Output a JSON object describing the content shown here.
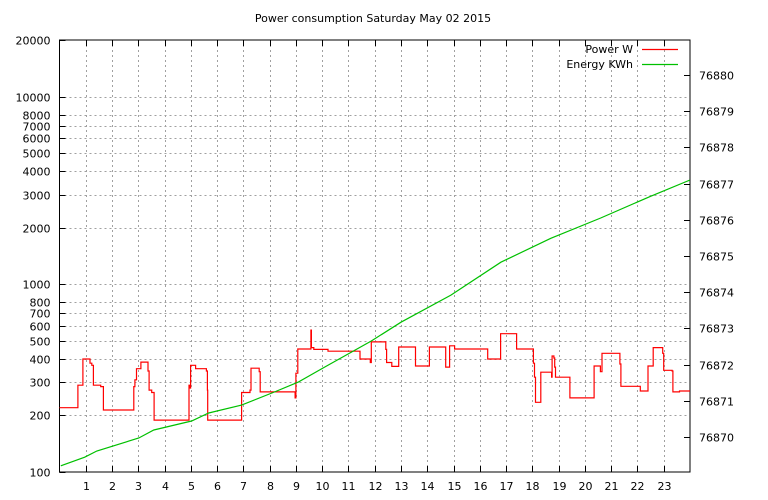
{
  "chart_data": {
    "type": "line",
    "title": "Power consumption Saturday May 02 2015",
    "xlabel": "",
    "ylabel": "",
    "xlim": [
      0,
      24
    ],
    "ylim": [
      100,
      20000
    ],
    "yscale": "log",
    "y2lim": [
      76869.03,
      76880.97
    ],
    "grid": true,
    "legend_position": "top-right",
    "x_ticks": [
      1,
      2,
      3,
      4,
      5,
      6,
      7,
      8,
      9,
      10,
      11,
      12,
      13,
      14,
      15,
      16,
      17,
      18,
      19,
      20,
      21,
      22,
      23
    ],
    "y_ticks": [
      100,
      200,
      300,
      400,
      500,
      600,
      700,
      800,
      1000,
      2000,
      3000,
      4000,
      5000,
      6000,
      7000,
      8000,
      10000,
      20000
    ],
    "y2_ticks": [
      76870,
      76871,
      76872,
      76873,
      76874,
      76875,
      76876,
      76877,
      76878,
      76879,
      76880
    ],
    "series": [
      {
        "name": "Power W",
        "color": "#ff0000",
        "axis": "left",
        "style": "steps",
        "points": [
          [
            0,
            220
          ],
          [
            0.7,
            290
          ],
          [
            0.89,
            400
          ],
          [
            1.16,
            380
          ],
          [
            1.23,
            370
          ],
          [
            1.29,
            290
          ],
          [
            1.57,
            285
          ],
          [
            1.67,
            214
          ],
          [
            2.83,
            285
          ],
          [
            2.87,
            310
          ],
          [
            2.93,
            355
          ],
          [
            3.1,
            385
          ],
          [
            3.37,
            345
          ],
          [
            3.41,
            273
          ],
          [
            3.51,
            265
          ],
          [
            3.6,
            189
          ],
          [
            4.93,
            290
          ],
          [
            4.97,
            280
          ],
          [
            4.99,
            370
          ],
          [
            5.18,
            355
          ],
          [
            5.59,
            345
          ],
          [
            5.63,
            273
          ],
          [
            5.64,
            189
          ],
          [
            6.93,
            265
          ],
          [
            7.25,
            273
          ],
          [
            7.29,
            357
          ],
          [
            7.6,
            342
          ],
          [
            7.64,
            267
          ],
          [
            8.97,
            248
          ],
          [
            9.0,
            336
          ],
          [
            9.07,
            452
          ],
          [
            9.57,
            570
          ],
          [
            9.59,
            460
          ],
          [
            9.68,
            450
          ],
          [
            10.22,
            440
          ],
          [
            11.44,
            400
          ],
          [
            11.83,
            383
          ],
          [
            11.87,
            493
          ],
          [
            12.42,
            450
          ],
          [
            12.45,
            383
          ],
          [
            12.65,
            365
          ],
          [
            12.91,
            463
          ],
          [
            13.55,
            367
          ],
          [
            14.08,
            463
          ],
          [
            14.7,
            362
          ],
          [
            14.85,
            470
          ],
          [
            15.04,
            452
          ],
          [
            16.3,
            400
          ],
          [
            16.79,
            545
          ],
          [
            17.4,
            452
          ],
          [
            18.04,
            380
          ],
          [
            18.08,
            320
          ],
          [
            18.12,
            235
          ],
          [
            18.32,
            340
          ],
          [
            18.73,
            320
          ],
          [
            18.75,
            415
          ],
          [
            18.82,
            405
          ],
          [
            18.85,
            362
          ],
          [
            18.88,
            320
          ],
          [
            19.43,
            248
          ],
          [
            20.35,
            367
          ],
          [
            20.59,
            342
          ],
          [
            20.65,
            429
          ],
          [
            21.33,
            376
          ],
          [
            21.37,
            286
          ],
          [
            22.11,
            270
          ],
          [
            22.4,
            367
          ],
          [
            22.6,
            460
          ],
          [
            22.96,
            429
          ],
          [
            23.0,
            348
          ],
          [
            23.32,
            345
          ],
          [
            23.35,
            267
          ],
          [
            23.6,
            270
          ],
          [
            24.0,
            270
          ]
        ]
      },
      {
        "name": "Energy KWh",
        "color": "#00c000",
        "axis": "right",
        "style": "lines",
        "points": [
          [
            0.05,
            76869.2
          ],
          [
            0.96,
            76869.44
          ],
          [
            1.42,
            76869.61
          ],
          [
            3.02,
            76869.97
          ],
          [
            3.59,
            76870.19
          ],
          [
            5.03,
            76870.44
          ],
          [
            5.68,
            76870.66
          ],
          [
            6.93,
            76870.88
          ],
          [
            8.18,
            76871.24
          ],
          [
            9.1,
            76871.52
          ],
          [
            10.09,
            76871.93
          ],
          [
            11.87,
            76872.65
          ],
          [
            13.0,
            76873.17
          ],
          [
            14.9,
            76873.92
          ],
          [
            16.8,
            76874.83
          ],
          [
            18.7,
            76875.49
          ],
          [
            20.6,
            76876.05
          ],
          [
            22.5,
            76876.65
          ],
          [
            24.0,
            76877.1
          ]
        ]
      }
    ]
  }
}
